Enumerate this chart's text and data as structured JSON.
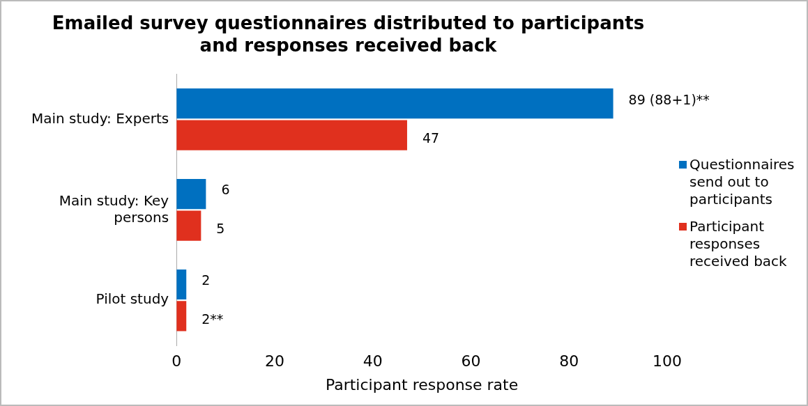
{
  "chart_data": {
    "type": "bar",
    "orientation": "horizontal",
    "title": "Emailed survey questionnaires distributed to participants and responses received back",
    "xlabel": "Participant response rate",
    "categories": [
      "Main study: Experts",
      "Main study: Key persons",
      "Pilot study"
    ],
    "series": [
      {
        "name": "Questionnaires send out to participants",
        "color": "#0070c0",
        "values": [
          89,
          6,
          2
        ],
        "value_labels": [
          "89 (88+1)**",
          "6",
          "2"
        ]
      },
      {
        "name": "Participant responses received back",
        "color": "#e0301e",
        "values": [
          47,
          5,
          2
        ],
        "value_labels": [
          "47",
          "5",
          "2**"
        ]
      }
    ],
    "xlim": [
      0,
      100
    ],
    "xticks": [
      0,
      20,
      40,
      60,
      80,
      100
    ],
    "grid": false,
    "legend": "right"
  }
}
